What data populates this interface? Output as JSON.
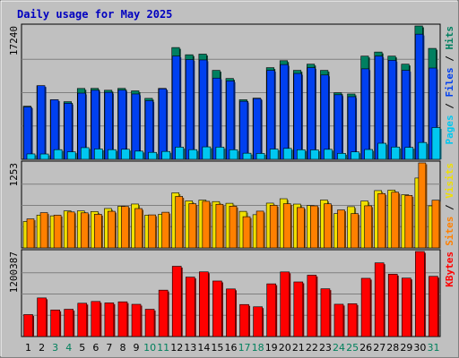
{
  "chart_data": {
    "type": "bar",
    "title": "Daily usage for May 2025",
    "categories": [
      "1",
      "2",
      "3",
      "4",
      "5",
      "6",
      "7",
      "8",
      "9",
      "10",
      "11",
      "12",
      "13",
      "14",
      "15",
      "16",
      "17",
      "18",
      "19",
      "20",
      "21",
      "22",
      "23",
      "24",
      "25",
      "26",
      "27",
      "28",
      "29",
      "30",
      "31"
    ],
    "weekend_days": [
      3,
      4,
      10,
      11,
      17,
      18,
      24,
      25,
      31
    ],
    "panels": [
      {
        "id": "hits",
        "max_label": "17240",
        "ymax": 17240,
        "side_labels": [
          {
            "text": "Pages",
            "color": "#00c8f0"
          },
          {
            "text": " / ",
            "color": "#000000"
          },
          {
            "text": "Files",
            "color": "#0040f0"
          },
          {
            "text": " / ",
            "color": "#000000"
          },
          {
            "text": "Hits",
            "color": "#008060"
          }
        ],
        "series": [
          {
            "name": "Hits",
            "color": "#008060",
            "values": [
              6870,
              9520,
              7700,
              7450,
              9160,
              9170,
              8930,
              9170,
              8850,
              7880,
              9170,
              14450,
              13520,
              13600,
              11500,
              10450,
              7700,
              7910,
              11850,
              12750,
              11500,
              12300,
              11500,
              8600,
              8450,
              13340,
              13870,
              13340,
              12300,
              17240,
              14340
            ]
          },
          {
            "name": "Files",
            "color": "#0040f0",
            "values": [
              6770,
              9520,
              7700,
              7250,
              8560,
              8930,
              8660,
              8950,
              8450,
              7580,
              9120,
              13350,
              12900,
              12850,
              10500,
              10140,
              7500,
              7850,
              11500,
              12250,
              11100,
              11850,
              10900,
              8350,
              8100,
              11700,
              13350,
              12800,
              11500,
              16180,
              11800
            ]
          },
          {
            "name": "Pages",
            "color": "#00c8f0",
            "values": [
              700,
              690,
              1250,
              970,
              1510,
              1340,
              1250,
              1300,
              1060,
              900,
              1020,
              1580,
              1250,
              1610,
              1580,
              1240,
              790,
              760,
              1330,
              1410,
              1240,
              1220,
              1290,
              770,
              960,
              1270,
              2080,
              1590,
              1550,
              2180,
              4110
            ]
          }
        ]
      },
      {
        "id": "visits",
        "max_label": "1253",
        "ymax": 1253,
        "side_labels": [
          {
            "text": "Sites",
            "color": "#ff8000"
          },
          {
            "text": " / ",
            "color": "#000000"
          },
          {
            "text": "Visits",
            "color": "#f0e000"
          }
        ],
        "series": [
          {
            "name": "Visits",
            "color": "#f0e000",
            "values": [
              390,
              484,
              473,
              546,
              546,
              536,
              581,
              614,
              647,
              484,
              496,
              812,
              693,
              705,
              683,
              658,
              539,
              490,
              660,
              725,
              646,
              624,
              706,
              506,
              608,
              691,
              845,
              852,
              784,
              1030,
              620
            ]
          },
          {
            "name": "Sites",
            "color": "#ff8000",
            "values": [
              428,
              520,
              483,
              530,
              517,
              496,
              540,
              612,
              580,
              487,
              526,
              759,
              652,
              687,
              643,
              616,
              460,
              542,
              628,
              652,
              595,
              620,
              650,
              560,
              506,
              621,
              801,
              821,
              774,
              1253,
              703
            ]
          }
        ]
      },
      {
        "id": "kbytes",
        "max_label": "1200387",
        "ymax": 1200387,
        "side_labels": [
          {
            "text": "KBytes",
            "color": "#ff0000"
          }
        ],
        "series": [
          {
            "name": "KBytes",
            "color": "#ff0000",
            "values": [
              310000,
              545000,
              375000,
              385000,
              470000,
              495000,
              475000,
              490000,
              455000,
              385000,
              655000,
              992000,
              839000,
              913000,
              784000,
              672000,
              452000,
              420000,
              744000,
              912000,
              771000,
              866000,
              674000,
              456000,
              463000,
              822000,
              1040000,
              880000,
              825000,
              1200387,
              850000
            ]
          }
        ]
      }
    ]
  }
}
